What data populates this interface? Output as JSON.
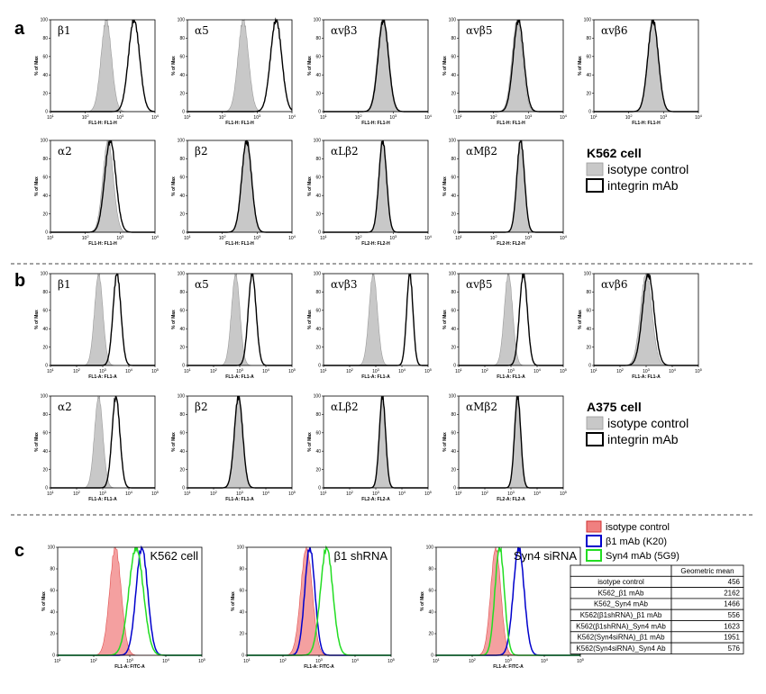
{
  "panel_letters": [
    "a",
    "b",
    "c"
  ],
  "chart_data": [
    {
      "type": "histogram",
      "panel": "a",
      "cell_line": "K562 cell",
      "ylabel": "% of Max",
      "ylim": [
        0,
        100
      ],
      "yticks": [
        "0",
        "20",
        "40",
        "60",
        "80",
        "100"
      ],
      "xscale": "log",
      "xlim": [
        10,
        10000
      ],
      "xticks": [
        "10^1",
        "10^2",
        "10^3",
        "10^4"
      ],
      "legend": [
        {
          "name": "isotype control",
          "color": "#c8c8c8",
          "style": "filled"
        },
        {
          "name": "integrin mAb",
          "color": "#000000",
          "style": "line"
        }
      ],
      "subplots": [
        {
          "title": "β1",
          "xlabel": "FL1-H: FL1-H",
          "control_peak": 400,
          "control_width": 0.15,
          "antibody_peak": 2500,
          "antibody_width": 0.16
        },
        {
          "title": "α5",
          "xlabel": "FL1-H: FL1-H",
          "control_peak": 400,
          "control_width": 0.15,
          "antibody_peak": 3500,
          "antibody_width": 0.16
        },
        {
          "title": "αvβ3",
          "xlabel": "FL1-H: FL1-H",
          "control_peak": 500,
          "control_width": 0.15,
          "antibody_peak": 520,
          "antibody_width": 0.15
        },
        {
          "title": "αvβ5",
          "xlabel": "FL1-H: FL1-H",
          "control_peak": 480,
          "control_width": 0.15,
          "antibody_peak": 520,
          "antibody_width": 0.15
        },
        {
          "title": "αvβ6",
          "xlabel": "FL1-H: FL1-H",
          "control_peak": 500,
          "control_width": 0.15,
          "antibody_peak": 500,
          "antibody_width": 0.15
        },
        {
          "title": "α2",
          "xlabel": "FL1-H: FL1-H",
          "control_peak": 450,
          "control_width": 0.15,
          "antibody_peak": 520,
          "antibody_width": 0.16
        },
        {
          "title": "β2",
          "xlabel": "FL1-H: FL1-H",
          "control_peak": 500,
          "control_width": 0.14,
          "antibody_peak": 500,
          "antibody_width": 0.14
        },
        {
          "title": "αLβ2",
          "xlabel": "FL2-H: FL2-H",
          "control_peak": 500,
          "control_width": 0.11,
          "antibody_peak": 500,
          "antibody_width": 0.11
        },
        {
          "title": "αMβ2",
          "xlabel": "FL2-H: FL2-H",
          "control_peak": 600,
          "control_width": 0.11,
          "antibody_peak": 600,
          "antibody_width": 0.11
        }
      ]
    },
    {
      "type": "histogram",
      "panel": "b",
      "cell_line": "A375 cell",
      "ylabel": "% of Max",
      "ylim": [
        0,
        100
      ],
      "yticks": [
        "0",
        "20",
        "40",
        "60",
        "80",
        "100"
      ],
      "xscale": "log",
      "xlim": [
        10,
        100000
      ],
      "xticks": [
        "10^1",
        "10^2",
        "10^3",
        "10^4",
        "10^5"
      ],
      "legend": [
        {
          "name": "isotype control",
          "color": "#c8c8c8",
          "style": "filled"
        },
        {
          "name": "integrin mAb",
          "color": "#000000",
          "style": "line"
        }
      ],
      "subplots": [
        {
          "title": "β1",
          "xlabel": "FL1-A: FL1-A",
          "control_peak": 700,
          "control_width": 0.16,
          "antibody_peak": 3500,
          "antibody_width": 0.15
        },
        {
          "title": "α5",
          "xlabel": "FL1-A: FL1-A",
          "control_peak": 700,
          "control_width": 0.16,
          "antibody_peak": 3000,
          "antibody_width": 0.15
        },
        {
          "title": "αvβ3",
          "xlabel": "FL1-A: FL1-A",
          "control_peak": 800,
          "control_width": 0.16,
          "antibody_peak": 20000,
          "antibody_width": 0.12
        },
        {
          "title": "αvβ5",
          "xlabel": "FL1-A: FL1-A",
          "control_peak": 800,
          "control_width": 0.16,
          "antibody_peak": 3000,
          "antibody_width": 0.15
        },
        {
          "title": "αvβ6",
          "xlabel": "FL1-A: FL1-A",
          "control_peak": 1000,
          "control_width": 0.22,
          "antibody_peak": 1200,
          "antibody_width": 0.22
        },
        {
          "title": "α2",
          "xlabel": "FL1-A: FL1-A",
          "control_peak": 700,
          "control_width": 0.16,
          "antibody_peak": 3200,
          "antibody_width": 0.15
        },
        {
          "title": "β2",
          "xlabel": "FL1-A: FL1-A",
          "control_peak": 900,
          "control_width": 0.16,
          "antibody_peak": 900,
          "antibody_width": 0.16
        },
        {
          "title": "αLβ2",
          "xlabel": "FL2-A: FL2-A",
          "control_peak": 1800,
          "control_width": 0.12,
          "antibody_peak": 1800,
          "antibody_width": 0.12
        },
        {
          "title": "αMβ2",
          "xlabel": "FL2-A: FL2-A",
          "control_peak": 1800,
          "control_width": 0.12,
          "antibody_peak": 1800,
          "antibody_width": 0.12
        }
      ]
    },
    {
      "type": "histogram",
      "panel": "c",
      "ylabel": "% of Max",
      "ylim": [
        0,
        100
      ],
      "yticks": [
        "0",
        "20",
        "40",
        "60",
        "80",
        "100"
      ],
      "xscale": "log",
      "xlim": [
        10,
        100000
      ],
      "xticks": [
        "10^1",
        "10^2",
        "10^3",
        "10^4",
        "10^5"
      ],
      "legend": [
        {
          "name": "isotype control",
          "color": "#f08080",
          "style": "filled"
        },
        {
          "name": "β1 mAb (K20)",
          "color": "#0000cc",
          "style": "line"
        },
        {
          "name": "Syn4 mAb (5G9)",
          "color": "#22dd22",
          "style": "line"
        }
      ],
      "subplots": [
        {
          "title": "K562 cell",
          "xlabel": "FL1-A: FITC-A",
          "control_peak": 400,
          "control_width": 0.16,
          "b1_peak": 2162,
          "b1_width": 0.16,
          "syn4_peak": 1500,
          "syn4_width": 0.2
        },
        {
          "title": "β1 shRNA",
          "xlabel": "FL1-A: FITC-A",
          "control_peak": 450,
          "control_width": 0.16,
          "b1_peak": 556,
          "b1_width": 0.14,
          "syn4_peak": 1623,
          "syn4_width": 0.17
        },
        {
          "title": "Syn4 siRNA",
          "xlabel": "FL1-A: FITC-A",
          "control_peak": 450,
          "control_width": 0.14,
          "b1_peak": 1951,
          "b1_width": 0.15,
          "syn4_peak": 576,
          "syn4_width": 0.13
        }
      ],
      "table": {
        "header": [
          "",
          "Geometric mean"
        ],
        "rows": [
          [
            "isotype control",
            "456"
          ],
          [
            "K562_β1 mAb",
            "2162"
          ],
          [
            "K562_Syn4 mAb",
            "1466"
          ],
          [
            "K562(β1shRNA)_β1 mAb",
            "556"
          ],
          [
            "K562(β1shRNA)_Syn4 mAb",
            "1623"
          ],
          [
            "K562(Syn4siRNA)_β1 mAb",
            "1951"
          ],
          [
            "K562(Syn4siRNA)_Syn4 Ab",
            "576"
          ]
        ]
      }
    }
  ]
}
